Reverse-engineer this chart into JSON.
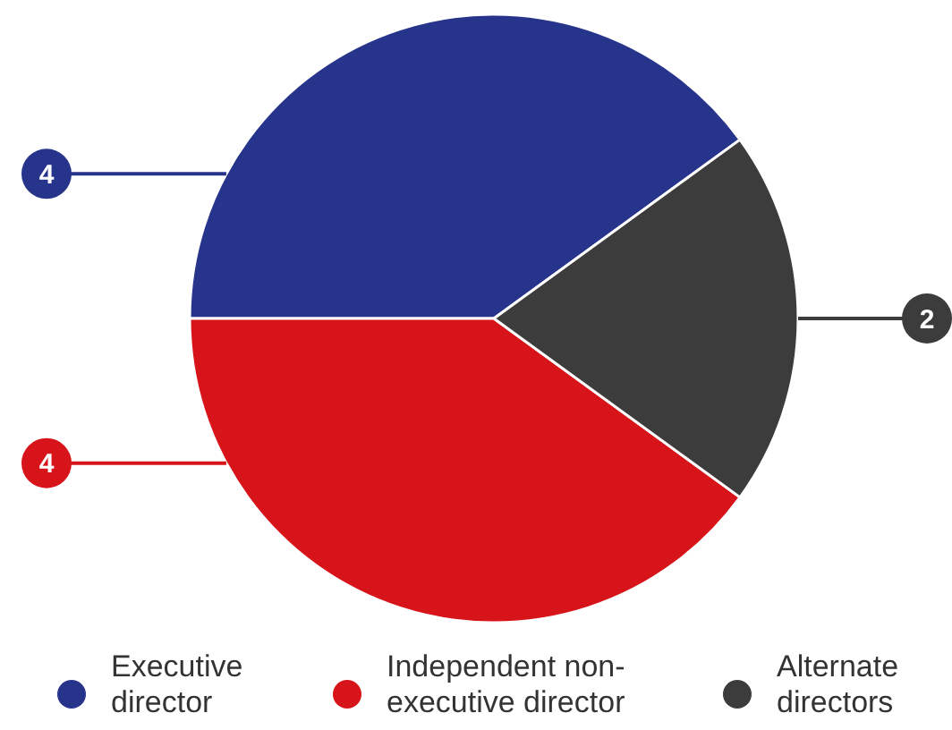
{
  "chart_data": {
    "type": "pie",
    "categories": [
      "Executive director",
      "Independent non-executive director",
      "Alternate directors"
    ],
    "values": [
      4,
      4,
      2
    ],
    "colors": [
      "#27348b",
      "#d7141a",
      "#3c3c3c"
    ],
    "data_labels": true,
    "legend": "bottom"
  }
}
